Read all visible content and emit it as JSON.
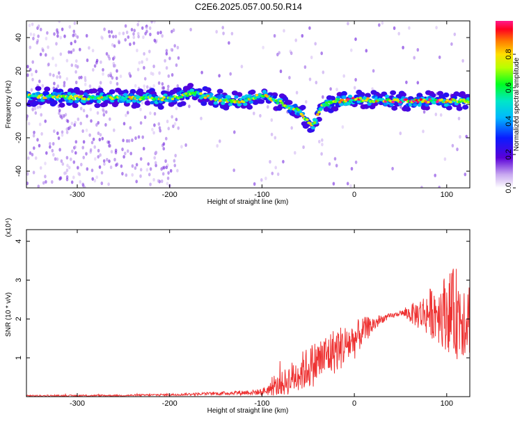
{
  "title": "C2E6.2025.057.00.50.R14",
  "chart_data": [
    {
      "type": "heatmap",
      "xlabel": "Height of straight line (km)",
      "ylabel": "Frequency (Hz)",
      "xlim": [
        -355,
        125
      ],
      "ylim": [
        -50,
        50
      ],
      "xticks": [
        -300,
        -200,
        -100,
        0,
        100
      ],
      "yticks": [
        -40,
        -20,
        0,
        20,
        40
      ],
      "colorbar": {
        "label": "Normalized spectral amplitude",
        "range": [
          0.0,
          1.0
        ],
        "ticks": [
          "0.0",
          "0.2",
          "0.4",
          "0.6",
          "0.8"
        ]
      },
      "ridge": {
        "description_points_x": [
          -355,
          -300,
          -250,
          -200,
          -175,
          -150,
          -120,
          -100,
          -80,
          -60,
          -45,
          -35,
          -20,
          0,
          50,
          100,
          125
        ],
        "description_points_y": [
          5,
          4,
          4,
          3,
          7,
          3,
          2,
          6,
          1,
          -4,
          -13,
          -1,
          2,
          3,
          2,
          2,
          2
        ]
      }
    },
    {
      "type": "line",
      "xlabel": "Height of straight line (km)",
      "ylabel": "SNR (10 * v/v)",
      "yscale_label": "(x10⁴)",
      "xlim": [
        -355,
        125
      ],
      "ylim": [
        0,
        4.3
      ],
      "xticks": [
        -300,
        -200,
        -100,
        0,
        100
      ],
      "yticks": [
        1,
        2,
        3,
        4
      ],
      "series": [
        {
          "color": "#ee3333",
          "trend_x": [
            -355,
            -250,
            -200,
            -150,
            -100,
            -80,
            -60,
            -40,
            -20,
            0,
            10,
            30,
            50,
            70,
            90,
            110,
            125
          ],
          "trend_y": [
            0.02,
            0.03,
            0.05,
            0.08,
            0.12,
            0.3,
            0.6,
            0.9,
            1.2,
            1.45,
            1.7,
            2.0,
            2.15,
            2.12,
            2.2,
            2.15,
            2.05
          ],
          "noise_y": [
            0.02,
            0.02,
            0.03,
            0.04,
            0.08,
            0.3,
            0.5,
            0.6,
            0.6,
            0.5,
            0.35,
            0.1,
            0.05,
            0.4,
            0.8,
            1.2,
            1.0
          ]
        }
      ]
    }
  ]
}
